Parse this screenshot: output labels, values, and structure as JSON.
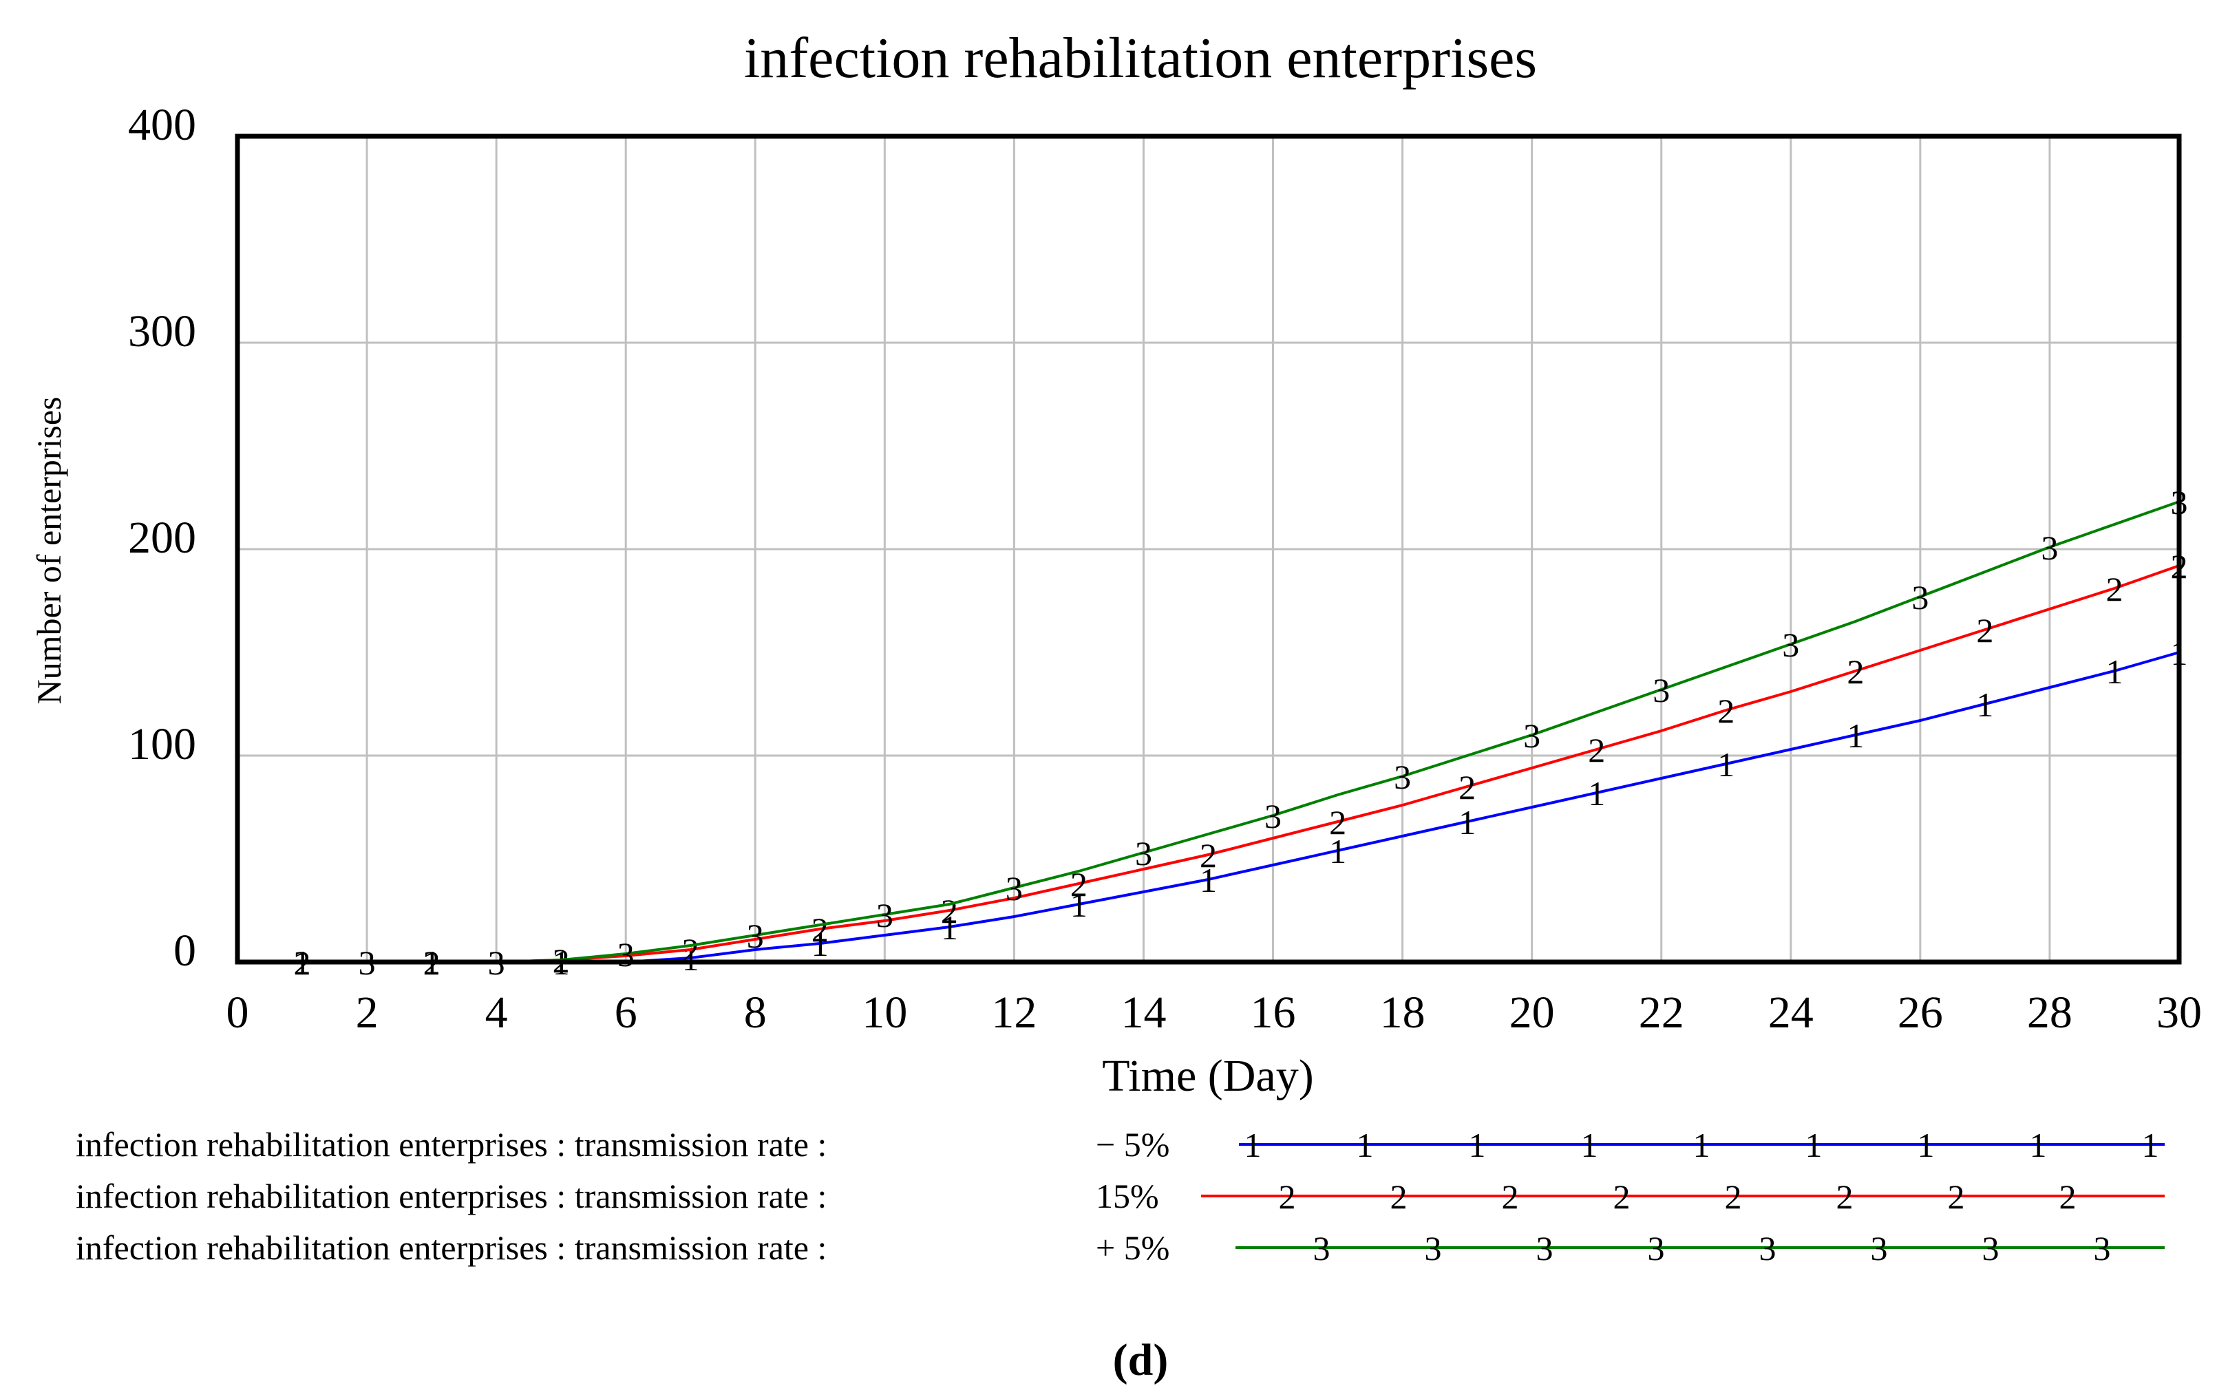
{
  "chart_data": {
    "type": "line",
    "title": "infection rehabilitation enterprises",
    "xlabel": "Time (Day)",
    "ylabel": "Number of enterprises",
    "xlim": [
      0,
      30
    ],
    "ylim": [
      0,
      400
    ],
    "x_ticks": [
      "0",
      "2",
      "4",
      "6",
      "8",
      "10",
      "12",
      "14",
      "16",
      "18",
      "20",
      "22",
      "24",
      "26",
      "28",
      "30"
    ],
    "y_ticks": [
      "0",
      "100",
      "200",
      "300",
      "400"
    ],
    "grid": true,
    "legend_position": "bottom",
    "x": [
      0,
      1,
      2,
      3,
      4,
      5,
      6,
      7,
      8,
      9,
      10,
      11,
      12,
      13,
      14,
      15,
      16,
      17,
      18,
      19,
      20,
      21,
      22,
      23,
      24,
      25,
      26,
      27,
      28,
      29,
      30
    ],
    "series": [
      {
        "name": "infection rehabilitation enterprises : transmission rate :",
        "rate_label": "− 5%",
        "marker": "1",
        "color": "#0000ff",
        "values": [
          0,
          0,
          0,
          0,
          0,
          0,
          0,
          2,
          6,
          9,
          13,
          17,
          22,
          28,
          34,
          40,
          47,
          54,
          61,
          68,
          75,
          82,
          89,
          96,
          103,
          110,
          117,
          125,
          133,
          141,
          150
        ]
      },
      {
        "name": "infection rehabilitation enterprises : transmission rate :",
        "rate_label": "15%",
        "marker": "2",
        "color": "#ff0000",
        "values": [
          0,
          0,
          0,
          0,
          0,
          1,
          3,
          6,
          11,
          16,
          20,
          25,
          31,
          38,
          45,
          52,
          60,
          68,
          76,
          85,
          94,
          103,
          112,
          122,
          131,
          141,
          151,
          161,
          171,
          181,
          192
        ]
      },
      {
        "name": "infection rehabilitation enterprises : transmission rate :",
        "rate_label": "+ 5%",
        "marker": "3",
        "color": "#008000",
        "values": [
          0,
          0,
          0,
          0,
          0,
          1,
          4,
          8,
          13,
          18,
          23,
          28,
          36,
          44,
          53,
          62,
          71,
          81,
          90,
          100,
          110,
          121,
          132,
          143,
          154,
          165,
          177,
          189,
          201,
          212,
          223
        ]
      }
    ]
  },
  "panel_label": "(d)"
}
